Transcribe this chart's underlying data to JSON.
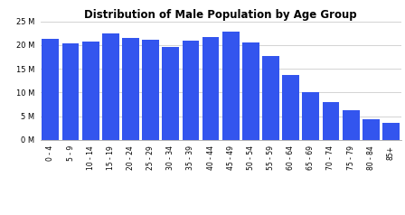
{
  "title": "Distribution of Male Population by Age Group",
  "categories": [
    "0 - 4",
    "5 - 9",
    "10 - 14",
    "15 - 19",
    "20 - 24",
    "25 - 29",
    "30 - 34",
    "35 - 39",
    "40 - 44",
    "45 - 49",
    "50 - 54",
    "55 - 59",
    "60 - 64",
    "65 - 69",
    "70 - 74",
    "75 - 79",
    "80 - 84",
    "85+"
  ],
  "values": [
    21400000,
    20300000,
    20700000,
    22400000,
    21500000,
    21100000,
    19600000,
    21000000,
    21800000,
    22800000,
    20600000,
    17700000,
    13700000,
    10100000,
    7900000,
    6200000,
    4400000,
    3500000
  ],
  "bar_color": "#3355ee",
  "ylim": [
    0,
    25000000
  ],
  "yticks": [
    0,
    5000000,
    10000000,
    15000000,
    20000000,
    25000000
  ],
  "ytick_labels": [
    "0 M",
    "5 M",
    "10 M",
    "15 M",
    "20 M",
    "25 M"
  ],
  "title_fontsize": 8.5,
  "tick_fontsize": 5.5,
  "ytick_fontsize": 6.0,
  "background_color": "#ffffff",
  "grid_color": "#cccccc"
}
